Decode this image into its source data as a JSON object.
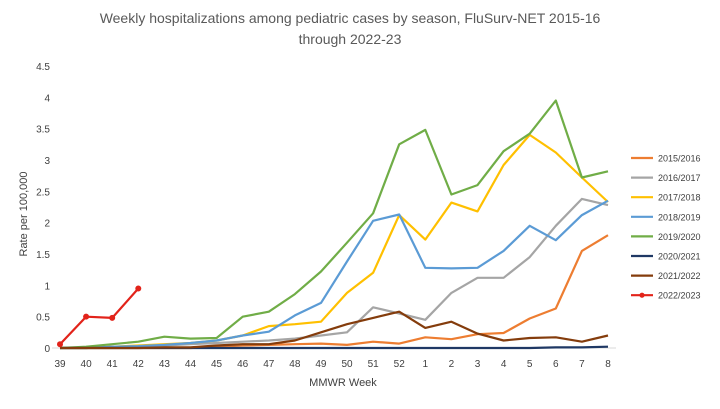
{
  "chart_data": {
    "type": "line",
    "title": "Weekly hospitalizations among pediatric cases by season, FluSurv-NET 2015-16 through 2022-23",
    "title_lines": [
      "Weekly hospitalizations among pediatric cases by season, FluSurv-NET 2015-16",
      "through 2022-23"
    ],
    "xlabel": "MMWR Week",
    "ylabel": "Rate per 100,000",
    "ylim": [
      0,
      4.5
    ],
    "y_ticks": [
      "0",
      "0.5",
      "1",
      "1.5",
      "2",
      "2.5",
      "3",
      "3.5",
      "4",
      "4.5"
    ],
    "categories": [
      "39",
      "40",
      "41",
      "42",
      "43",
      "44",
      "45",
      "46",
      "47",
      "48",
      "49",
      "50",
      "51",
      "52",
      "1",
      "2",
      "3",
      "4",
      "5",
      "6",
      "7",
      "8"
    ],
    "grid": false,
    "legend_position": "right",
    "series": [
      {
        "name": "2015/2016",
        "color": "#ED7D31",
        "markers": false,
        "values": [
          0,
          0,
          0,
          0,
          0,
          0,
          0.02,
          0.04,
          0.05,
          0.06,
          0.07,
          0.05,
          0.1,
          0.07,
          0.17,
          0.14,
          0.22,
          0.24,
          0.47,
          0.63,
          1.55,
          1.8
        ]
      },
      {
        "name": "2016/2017",
        "color": "#A5A5A5",
        "markers": false,
        "values": [
          0,
          0,
          0.02,
          0.02,
          0.04,
          0.06,
          0.08,
          0.1,
          0.12,
          0.15,
          0.2,
          0.25,
          0.65,
          0.55,
          0.45,
          0.88,
          1.12,
          1.12,
          1.45,
          1.95,
          2.38,
          2.28
        ]
      },
      {
        "name": "2017/2018",
        "color": "#FFC000",
        "markers": false,
        "values": [
          0,
          0,
          0.02,
          0.04,
          0.06,
          0.08,
          0.12,
          0.2,
          0.35,
          0.38,
          0.42,
          0.88,
          1.2,
          2.12,
          1.73,
          2.32,
          2.18,
          2.92,
          3.4,
          3.12,
          2.72,
          2.33
        ]
      },
      {
        "name": "2018/2019",
        "color": "#5B9BD5",
        "markers": false,
        "values": [
          0,
          0,
          0.02,
          0.03,
          0.05,
          0.08,
          0.12,
          0.2,
          0.26,
          0.52,
          0.72,
          1.38,
          2.03,
          2.13,
          1.28,
          1.27,
          1.28,
          1.55,
          1.95,
          1.72,
          2.12,
          2.35
        ]
      },
      {
        "name": "2019/2020",
        "color": "#70AD47",
        "markers": false,
        "values": [
          0,
          0.02,
          0.06,
          0.1,
          0.18,
          0.15,
          0.16,
          0.5,
          0.58,
          0.86,
          1.22,
          1.68,
          2.15,
          3.25,
          3.48,
          2.45,
          2.6,
          3.14,
          3.42,
          3.95,
          2.72,
          2.82
        ]
      },
      {
        "name": "2020/2021",
        "color": "#1F3864",
        "markers": false,
        "values": [
          0,
          0,
          0,
          0,
          0,
          0,
          0,
          0,
          0,
          0,
          0,
          0,
          0,
          0,
          0,
          0,
          0,
          0,
          0,
          0.01,
          0.01,
          0.02
        ]
      },
      {
        "name": "2021/2022",
        "color": "#843C0C",
        "markers": false,
        "values": [
          0,
          0,
          0,
          0,
          0.01,
          0.01,
          0.04,
          0.06,
          0.06,
          0.12,
          0.25,
          0.38,
          0.48,
          0.58,
          0.32,
          0.42,
          0.23,
          0.12,
          0.16,
          0.17,
          0.1,
          0.2
        ]
      },
      {
        "name": "2022/2023",
        "color": "#E2231A",
        "markers": true,
        "values": [
          0.06,
          0.5,
          0.48,
          0.95,
          null,
          null,
          null,
          null,
          null,
          null,
          null,
          null,
          null,
          null,
          null,
          null,
          null,
          null,
          null,
          null,
          null,
          null
        ]
      }
    ]
  }
}
